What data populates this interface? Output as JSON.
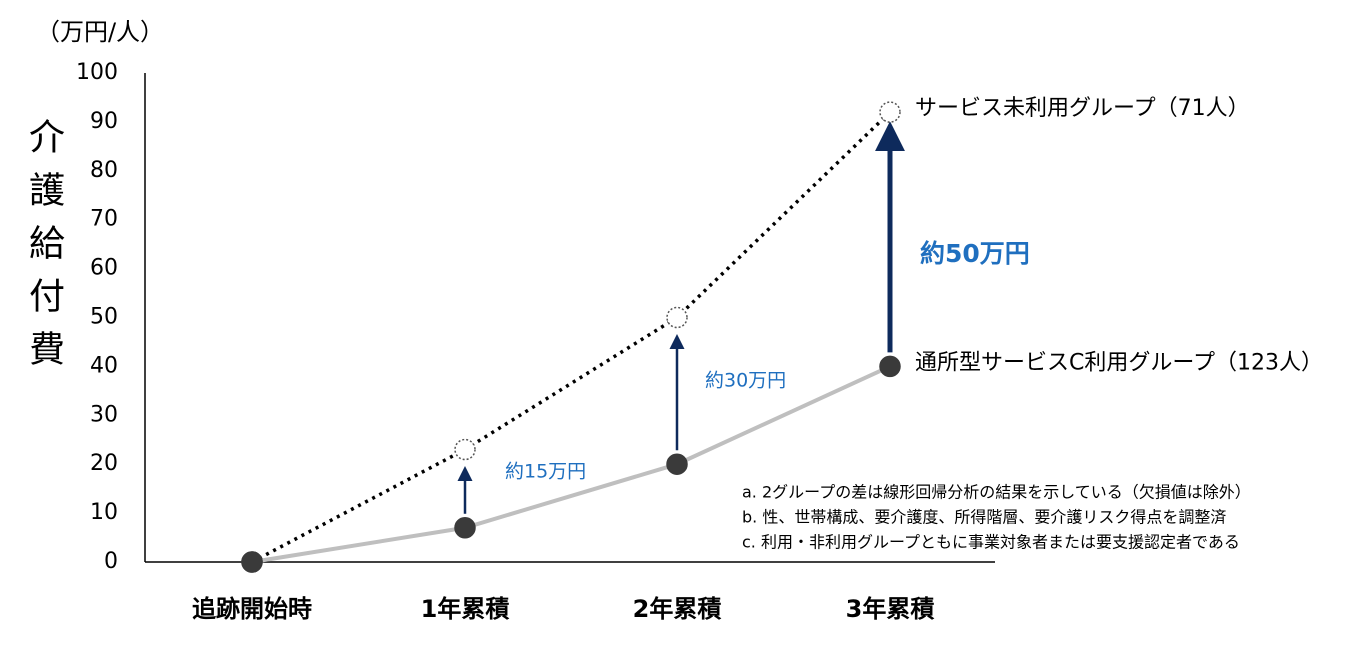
{
  "chart_data": {
    "type": "line",
    "unit_label": "（万円/人）",
    "y_axis_label": "介護給付費",
    "categories": [
      "追跡開始時",
      "1年累積",
      "2年累積",
      "3年累積"
    ],
    "series": [
      {
        "name": "サービス未利用グループ（71人）",
        "color": "#000000",
        "values": [
          0,
          23,
          50,
          92
        ]
      },
      {
        "name": "通所型サービスC利用グループ（123人）",
        "color": "#bfbfbf",
        "values": [
          0,
          7,
          20,
          40
        ]
      }
    ],
    "ylim": [
      0,
      100
    ],
    "yticks": [
      0,
      10,
      20,
      30,
      40,
      50,
      60,
      70,
      80,
      90,
      100
    ],
    "annotations": [
      "約15万円",
      "約30万円",
      "約50万円"
    ],
    "notes": [
      "a.  2グループの差は線形回帰分析の結果を示している（欠損値は除外）",
      "b.  性、世帯構成、要介護度、所得階層、要介護リスク得点を調整済",
      "c.  利用・非利用グループともに事業対象者または要支援認定者である"
    ]
  }
}
